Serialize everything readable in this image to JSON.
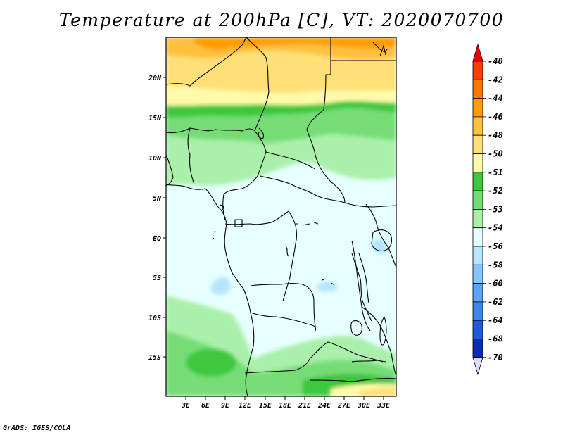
{
  "title": "Temperature at 200hPa [C], VT: 2020070700",
  "credit": "GrADS: IGES/COLA",
  "map": {
    "lat_labels": [
      "20N",
      "15N",
      "10N",
      "5N",
      "EQ",
      "5S",
      "10S",
      "15S"
    ],
    "lon_labels": [
      "3E",
      "6E",
      "9E",
      "12E",
      "15E",
      "18E",
      "21E",
      "24E",
      "27E",
      "30E",
      "33E"
    ]
  },
  "colorbar": {
    "labels": [
      "-40",
      "-42",
      "-44",
      "-46",
      "-48",
      "-50",
      "-51",
      "-52",
      "-53",
      "-54",
      "-56",
      "-58",
      "-60",
      "-62",
      "-64",
      "-68",
      "-70"
    ],
    "colors": [
      "#e60000",
      "#ff3c00",
      "#ff7700",
      "#ff9d00",
      "#ffc03c",
      "#ffdf76",
      "#fffaaa",
      "#3cc83c",
      "#76dd76",
      "#aaf0aa",
      "#e6ffff",
      "#b4e6ff",
      "#82c8ff",
      "#5aa5f5",
      "#3c87e6",
      "#1e5adc",
      "#0a2db4",
      "#00007a",
      "#dcdcff"
    ]
  }
}
